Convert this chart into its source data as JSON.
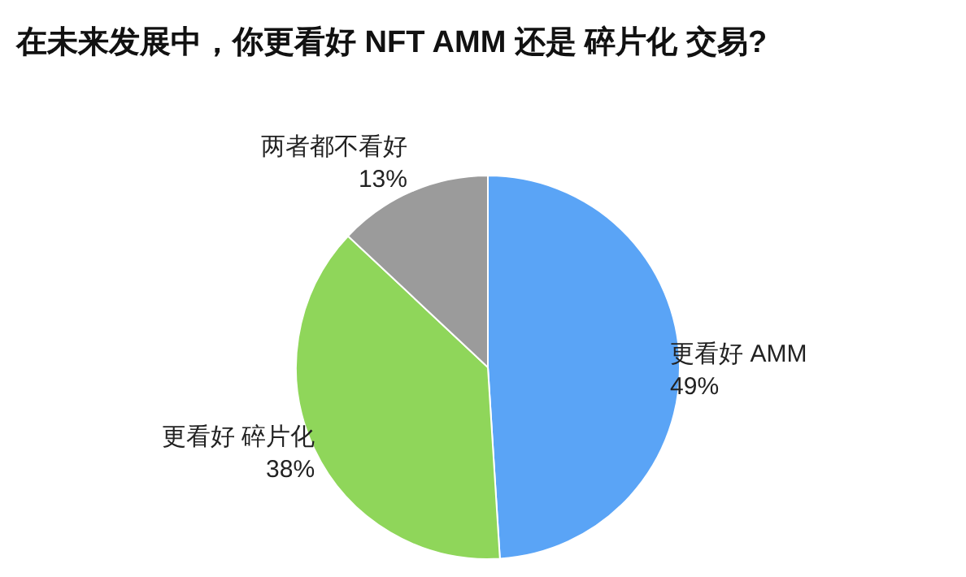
{
  "chart_data": {
    "type": "pie",
    "title": "在未来发展中，你更看好 NFT AMM 还是 碎片化 交易?",
    "categories": [
      "更看好 AMM",
      "更看好 碎片化",
      "两者都不看好"
    ],
    "values": [
      49,
      38,
      13
    ],
    "value_labels": [
      "49%",
      "38%",
      "13%"
    ],
    "colors": [
      "#5aa4f6",
      "#8fd65a",
      "#9b9b9b"
    ]
  }
}
